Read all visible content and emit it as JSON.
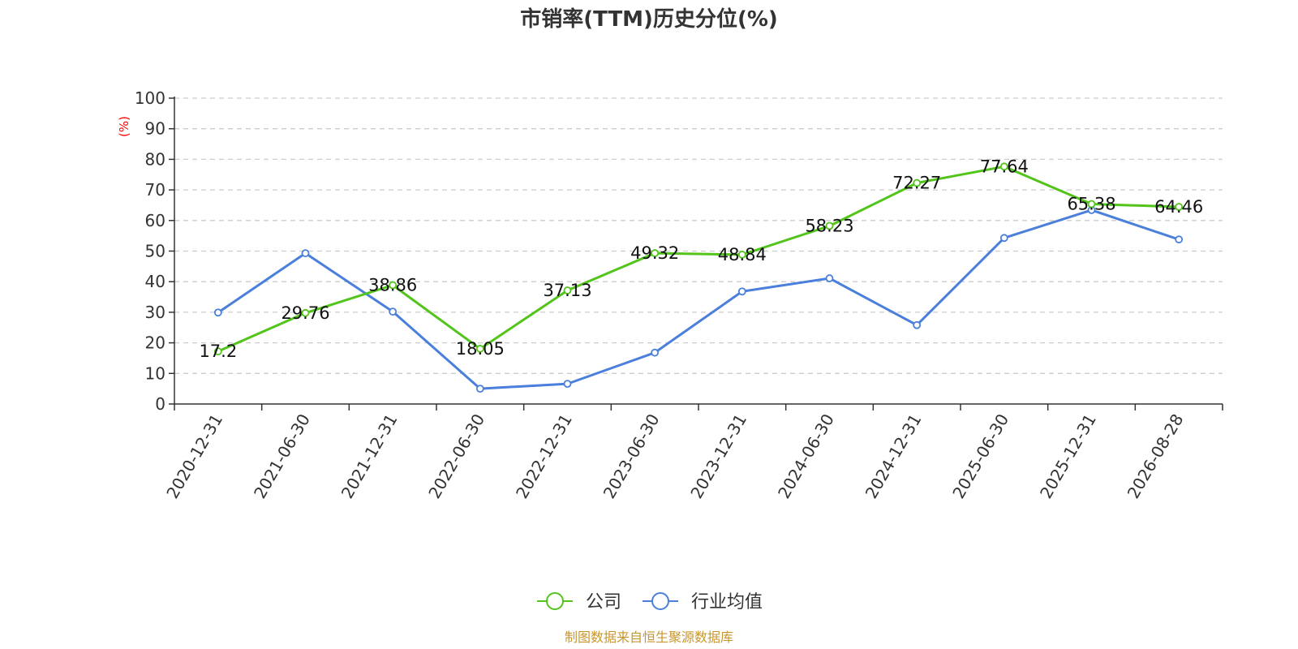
{
  "chart_data": {
    "type": "line",
    "title": "市销率(TTM)历史分位(%)",
    "ylabel": "(%)",
    "ylim": [
      0,
      100
    ],
    "yticks": [
      0,
      10,
      20,
      30,
      40,
      50,
      60,
      70,
      80,
      90,
      100
    ],
    "x_tick_labels": [
      "2020-12-31",
      "2021-06-30",
      "2021-12-31",
      "2022-06-30",
      "2022-12-31",
      "2023-06-30",
      "2023-12-31",
      "2024-06-30",
      "2024-12-31",
      "2025-06-30",
      "2025-12-31",
      "2026-08-28"
    ],
    "grid": true,
    "legend_position": "bottom-center",
    "series": [
      {
        "name": "公司",
        "color": "#52c41a",
        "values": [
          17.2,
          29.76,
          38.86,
          18.05,
          37.13,
          49.32,
          48.84,
          58.23,
          72.27,
          77.64,
          65.38,
          64.46
        ],
        "labels": [
          "17.2",
          "29.76",
          "38.86",
          "18.05",
          "37.13",
          "49.32",
          "48.84",
          "58.23",
          "72.27",
          "77.64",
          "65.38",
          "64.46"
        ]
      },
      {
        "name": "行业均值",
        "color": "#4a7fdb",
        "values": [
          29.9,
          49.3,
          30.2,
          5.0,
          6.6,
          16.8,
          36.8,
          41.1,
          25.8,
          54.3,
          63.4,
          53.8
        ]
      }
    ]
  },
  "source_text": "制图数据来自恒生聚源数据库",
  "colors": {
    "axis": "#333333",
    "grid": "#cccccc",
    "ylabel": "#ff0000",
    "source": "#c8962e"
  }
}
